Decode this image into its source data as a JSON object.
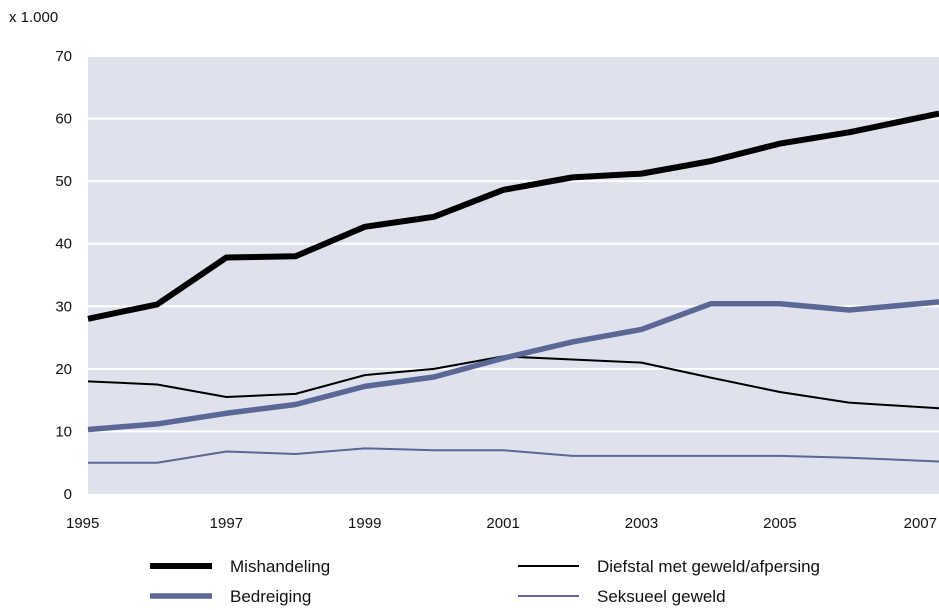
{
  "chart_data": {
    "type": "line",
    "unit_label": "x 1.000",
    "xlim": [
      1995,
      2007.3
    ],
    "ylim": [
      0,
      70
    ],
    "x_ticks": [
      1995,
      1997,
      1999,
      2001,
      2003,
      2005,
      2007
    ],
    "y_ticks": [
      0,
      10,
      20,
      30,
      40,
      50,
      60,
      70
    ],
    "grid": true,
    "legend_position": "bottom",
    "x": [
      1995,
      1996,
      1997,
      1998,
      1999,
      2000,
      2001,
      2002,
      2003,
      2004,
      2005,
      2006,
      2007.3
    ],
    "series": [
      {
        "name": "Mishandeling",
        "color": "#000000",
        "values": [
          28,
          30.3,
          37.8,
          38,
          42.7,
          44.3,
          48.6,
          50.6,
          51.2,
          53.2,
          56,
          57.8,
          60.8
        ]
      },
      {
        "name": "Diefstal met geweld/afpersing",
        "color": "#000000",
        "values": [
          18,
          17.5,
          15.5,
          16,
          19,
          20,
          22,
          21.5,
          21,
          18.6,
          16.3,
          14.6,
          13.7
        ]
      },
      {
        "name": "Bedreiging",
        "color": "#5b6796",
        "values": [
          10.3,
          11.2,
          12.9,
          14.3,
          17.2,
          18.7,
          21.7,
          24.3,
          26.3,
          30.4,
          30.4,
          29.4,
          30.7
        ]
      },
      {
        "name": "Seksueel geweld",
        "color": "#5b6796",
        "values": [
          5,
          5,
          6.8,
          6.4,
          7.3,
          7,
          7,
          6.1,
          6.1,
          6.1,
          6.1,
          5.8,
          5.2
        ]
      }
    ]
  }
}
